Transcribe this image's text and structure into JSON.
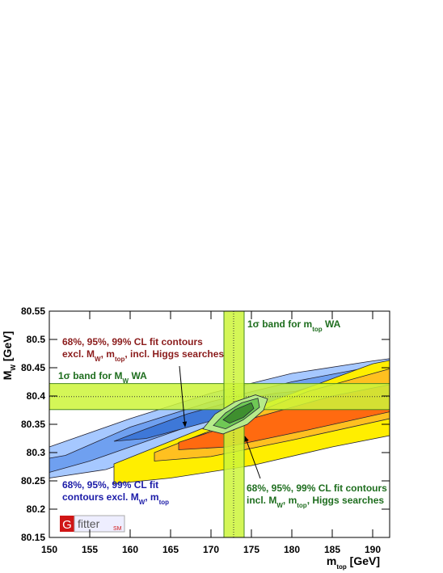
{
  "chart_data": {
    "type": "contour",
    "xlim": [
      150,
      192.1
    ],
    "ylim": [
      80.15,
      80.55
    ],
    "xticks": [
      150,
      155,
      160,
      165,
      170,
      175,
      180,
      185,
      190
    ],
    "yticks": [
      80.15,
      80.2,
      80.25,
      80.3,
      80.35,
      80.4,
      80.45,
      80.5,
      80.55
    ],
    "x_label": [
      "m",
      "top",
      " [GeV]"
    ],
    "y_label": [
      "M",
      "W",
      " [GeV]"
    ],
    "contours": {
      "excl_higgs": [
        {
          "color": "#a6c8ff",
          "x": [
            150,
            160,
            170,
            180,
            190,
            192.1,
            192.1,
            185,
            175,
            165,
            157,
            150
          ],
          "y": [
            80.31,
            80.36,
            80.405,
            80.44,
            80.462,
            80.466,
            80.44,
            80.41,
            80.36,
            80.31,
            80.27,
            80.255
          ]
        },
        {
          "color": "#6fa0f0",
          "x": [
            150,
            152,
            160,
            170,
            180,
            190,
            192.1,
            192.1,
            182,
            172,
            162,
            155,
            150
          ],
          "y": [
            80.29,
            80.295,
            80.345,
            80.39,
            80.425,
            80.452,
            80.458,
            80.445,
            80.415,
            80.37,
            80.32,
            80.285,
            80.265
          ]
        },
        {
          "color": "#3e78d8",
          "x": [
            158,
            162,
            167,
            173,
            178,
            182,
            180,
            174,
            168,
            162
          ],
          "y": [
            80.32,
            80.342,
            80.368,
            80.392,
            80.405,
            80.41,
            80.395,
            80.372,
            80.348,
            80.325
          ]
        }
      ],
      "incl_higgs": [
        {
          "color": "#ffee00",
          "x": [
            158,
            165,
            175,
            183,
            190,
            192.1,
            192.1,
            185,
            175,
            165,
            158
          ],
          "y": [
            80.28,
            80.32,
            80.378,
            80.42,
            80.457,
            80.463,
            80.33,
            80.31,
            80.277,
            80.255,
            80.245
          ]
        },
        {
          "color": "#ffc020",
          "x": [
            163,
            172,
            182,
            192.1,
            192.1,
            180,
            170,
            163
          ],
          "y": [
            80.3,
            80.35,
            80.408,
            80.448,
            80.36,
            80.322,
            80.293,
            80.285
          ]
        },
        {
          "color": "#ff6a10",
          "x": [
            166,
            175,
            185,
            192.1,
            192.1,
            182,
            172,
            166
          ],
          "y": [
            80.318,
            80.36,
            80.4,
            80.42,
            80.372,
            80.34,
            80.31,
            80.305
          ]
        }
      ],
      "full_fit": [
        {
          "color": "#b6eb8a",
          "x": [
            169,
            170.5,
            173,
            175.5,
            177,
            176.5,
            174.5,
            171.5
          ],
          "y": [
            80.342,
            80.368,
            80.39,
            80.402,
            80.395,
            80.375,
            80.35,
            80.333
          ]
        },
        {
          "color": "#6fc855",
          "x": [
            170.3,
            171.8,
            173.8,
            175.8,
            176,
            174,
            171.8
          ],
          "y": [
            80.348,
            80.37,
            80.388,
            80.396,
            80.38,
            80.358,
            80.342
          ]
        },
        {
          "color": "#3f8f2f",
          "x": [
            171.5,
            173,
            175,
            175.3,
            174,
            172.3
          ],
          "y": [
            80.358,
            80.376,
            80.388,
            80.378,
            80.362,
            80.352
          ]
        }
      ]
    },
    "bands": {
      "mw": {
        "range": [
          80.376,
          80.422
        ],
        "center": 80.399,
        "color": "#ccf53a",
        "label": [
          "1σ band for M",
          "W",
          " WA"
        ]
      },
      "mtop": {
        "range": [
          171.6,
          174.1
        ],
        "center": 172.8,
        "color": "#ccf53a",
        "label": [
          "1σ band for m",
          "top",
          " WA"
        ]
      }
    },
    "annotations": [
      {
        "color": "#8b1c1c",
        "lines": [
          [
            "68%, 95%, 99% CL fit contours"
          ],
          [
            "excl. M",
            "W",
            ", m",
            "top",
            ", incl. Higgs searches"
          ]
        ]
      },
      {
        "color": "#1c1ca8",
        "lines": [
          [
            "68%, 95%, 99% CL fit"
          ],
          [
            "contours excl. M",
            "W",
            ", m",
            "top"
          ]
        ]
      },
      {
        "color": "#1f6e1f",
        "lines": [
          [
            "68%, 95%, 99% CL fit contours"
          ],
          [
            "incl. M",
            "W",
            ", m",
            "top",
            ", Higgs searches"
          ]
        ]
      }
    ],
    "logo": [
      "G",
      "fitter",
      "SM"
    ]
  }
}
